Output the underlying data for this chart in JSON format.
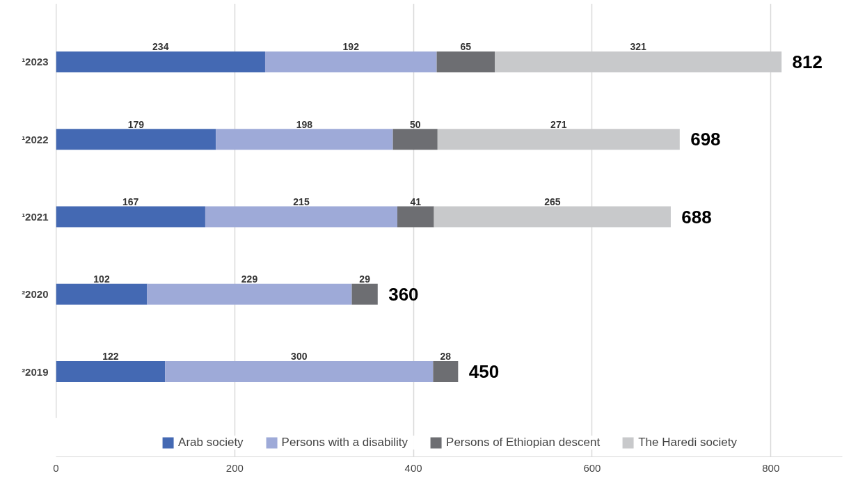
{
  "chart_data": {
    "type": "bar",
    "orientation": "horizontal",
    "stacked": true,
    "categories": [
      "¹2023",
      "¹2022",
      "¹2021",
      "²2020",
      "²2019"
    ],
    "series": [
      {
        "name": "Arab society",
        "color": "#4469b3",
        "values": [
          234,
          179,
          167,
          102,
          122
        ]
      },
      {
        "name": "Persons with a disability",
        "color": "#9eaad8",
        "values": [
          192,
          198,
          215,
          229,
          300
        ]
      },
      {
        "name": "Persons of Ethiopian descent",
        "color": "#6d6e72",
        "values": [
          65,
          50,
          41,
          29,
          28
        ]
      },
      {
        "name": "The Haredi society",
        "color": "#c8c9cb",
        "values": [
          321,
          271,
          265,
          null,
          null
        ]
      }
    ],
    "totals": [
      "812",
      "698",
      "688",
      "360",
      "450"
    ],
    "data_labels": true,
    "xlim": [
      0,
      880
    ],
    "xticks": [
      0,
      200,
      400,
      600,
      800
    ],
    "grid": "x",
    "legend": "bottom"
  }
}
